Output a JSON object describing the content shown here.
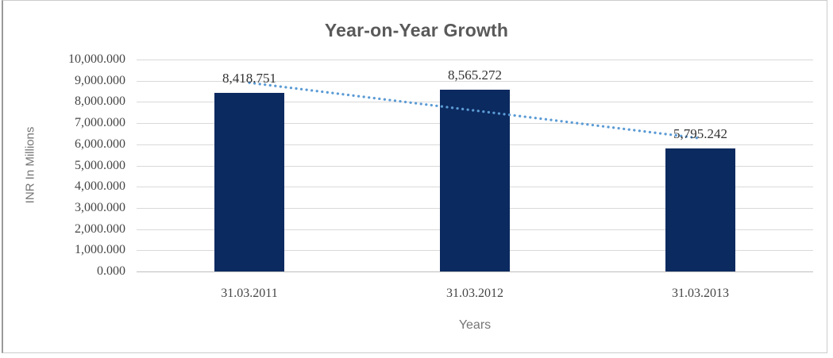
{
  "window": {
    "background": "#ffffff",
    "frame_border_color": "#cccccc"
  },
  "chart_data": {
    "type": "bar",
    "title": "Year-on-Year Growth",
    "categories": [
      "31.03.2011",
      "31.03.2012",
      "31.03.2013"
    ],
    "values": [
      8418.751,
      8565.272,
      5795.242
    ],
    "data_labels": [
      "8,418.751",
      "8,565.272",
      "5,795.242"
    ],
    "xlabel": "Years",
    "ylabel": "INR In Millions",
    "ylim": [
      0,
      10000
    ],
    "ytick_step": 1000,
    "ytick_labels_top_to_bottom": [
      "10,000.000",
      "9,000.000",
      "8,000.000",
      "7,000.000",
      "6,000.000",
      "5,000.000",
      "4,000.000",
      "3,000.000",
      "2,000.000",
      "1,000.000",
      "0.000"
    ],
    "grid": true,
    "legend": "none",
    "trendline": {
      "type": "linear",
      "style": "dotted",
      "series": "values",
      "color": "#5b9bd5"
    },
    "colors": {
      "bar": "#0b2a60",
      "trendline": "#5b9bd5",
      "gridline": "#d9d9d9",
      "axis_line": "#bfbfbf",
      "title": "#595959",
      "axis_title": "#757575",
      "tick_label": "#454545",
      "data_label": "#333333"
    }
  }
}
